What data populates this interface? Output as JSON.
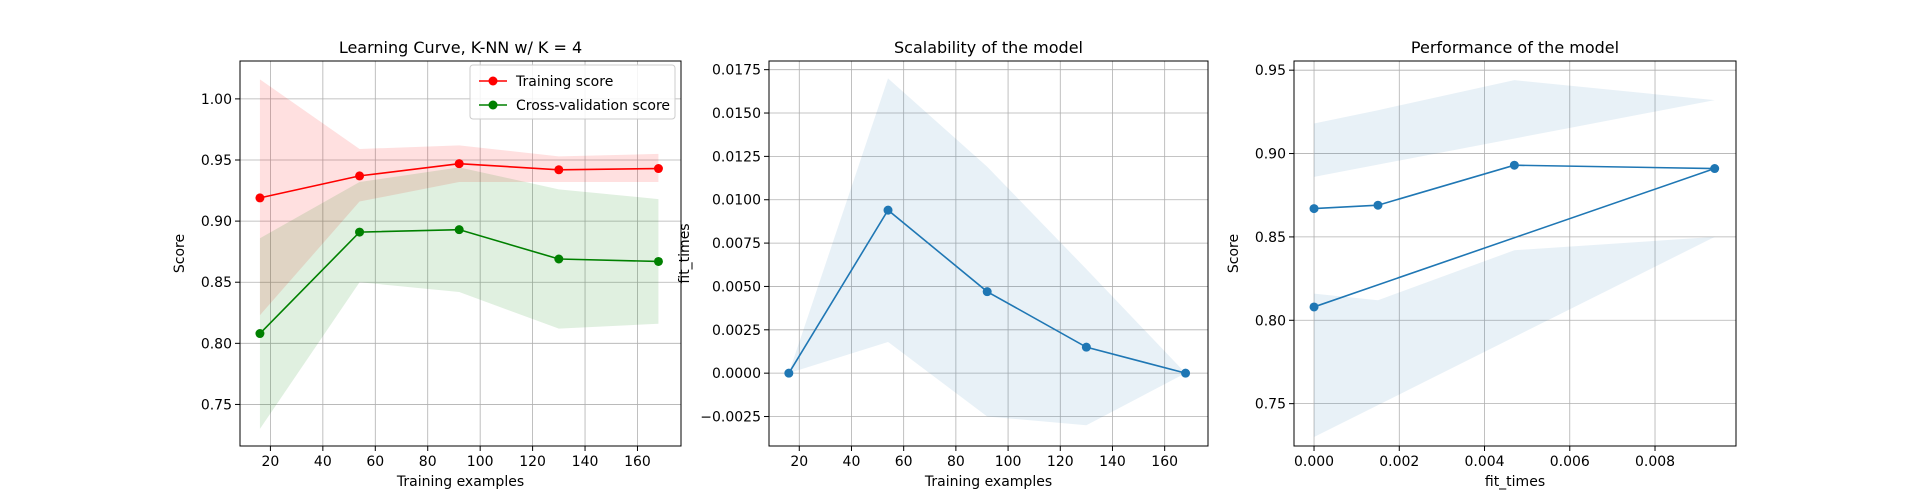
{
  "chart_data": [
    {
      "type": "line",
      "title": "Learning Curve, K-NN w/ K = 4",
      "xlabel": "Training examples",
      "ylabel": "Score",
      "xlim": [
        8.4,
        176.6
      ],
      "ylim": [
        0.716,
        1.031
      ],
      "xticks": [
        20,
        40,
        60,
        80,
        100,
        120,
        140,
        160
      ],
      "yticks": [
        0.75,
        0.8,
        0.85,
        0.9,
        0.95,
        1.0
      ],
      "ytick_labels": [
        "0.75",
        "0.80",
        "0.85",
        "0.90",
        "0.95",
        "1.00"
      ],
      "grid": true,
      "legend": "upper right",
      "x": [
        16,
        54,
        92,
        130,
        168
      ],
      "series": [
        {
          "name": "Training score",
          "color": "#ff0000",
          "values": [
            0.919,
            0.937,
            0.947,
            0.942,
            0.943
          ],
          "band_lower": [
            0.823,
            0.916,
            0.932,
            0.932,
            0.932
          ],
          "band_upper": [
            1.016,
            0.959,
            0.962,
            0.953,
            0.955
          ]
        },
        {
          "name": "Cross-validation score",
          "color": "#008000",
          "values": [
            0.808,
            0.891,
            0.893,
            0.869,
            0.867
          ],
          "band_lower": [
            0.73,
            0.85,
            0.842,
            0.812,
            0.816
          ],
          "band_upper": [
            0.886,
            0.932,
            0.944,
            0.926,
            0.918
          ]
        }
      ]
    },
    {
      "type": "line",
      "title": "Scalability of the model",
      "xlabel": "Training examples",
      "ylabel": "fit_times",
      "xlim": [
        8.4,
        176.6
      ],
      "ylim": [
        -0.0042,
        0.018
      ],
      "xticks": [
        20,
        40,
        60,
        80,
        100,
        120,
        140,
        160
      ],
      "yticks": [
        -0.0025,
        0.0,
        0.0025,
        0.005,
        0.0075,
        0.01,
        0.0125,
        0.015,
        0.0175
      ],
      "ytick_labels": [
        "−0.0025",
        "0.0000",
        "0.0025",
        "0.0050",
        "0.0075",
        "0.0100",
        "0.0125",
        "0.0150",
        "0.0175"
      ],
      "grid": true,
      "x": [
        16,
        54,
        92,
        130,
        168
      ],
      "series": [
        {
          "color": "#1f77b4",
          "values": [
            0.0,
            0.0094,
            0.0047,
            0.0015,
            0.0
          ],
          "band_lower": [
            0.0,
            0.0018,
            -0.0025,
            -0.003,
            0.0
          ],
          "band_upper": [
            0.0,
            0.017,
            0.0119,
            0.006,
            0.0
          ]
        }
      ]
    },
    {
      "type": "line",
      "title": "Performance of the model",
      "xlabel": "fit_times",
      "ylabel": "Score",
      "xlim": [
        -0.00047,
        0.0099
      ],
      "ylim": [
        0.7246,
        0.9555
      ],
      "xticks": [
        0.0,
        0.002,
        0.004,
        0.006,
        0.008
      ],
      "xtick_labels": [
        "0.000",
        "0.002",
        "0.004",
        "0.006",
        "0.008"
      ],
      "yticks": [
        0.75,
        0.8,
        0.85,
        0.9,
        0.95
      ],
      "ytick_labels": [
        "0.75",
        "0.80",
        "0.85",
        "0.90",
        "0.95"
      ],
      "grid": true,
      "x": [
        0.0,
        0.0015,
        0.0047,
        0.0094,
        0.0
      ],
      "series": [
        {
          "color": "#1f77b4",
          "values": [
            0.867,
            0.869,
            0.893,
            0.891,
            0.808
          ],
          "band_lower": [
            0.816,
            0.812,
            0.842,
            0.85,
            0.73
          ],
          "band_upper": [
            0.918,
            0.926,
            0.944,
            0.932,
            0.886
          ]
        }
      ]
    }
  ]
}
